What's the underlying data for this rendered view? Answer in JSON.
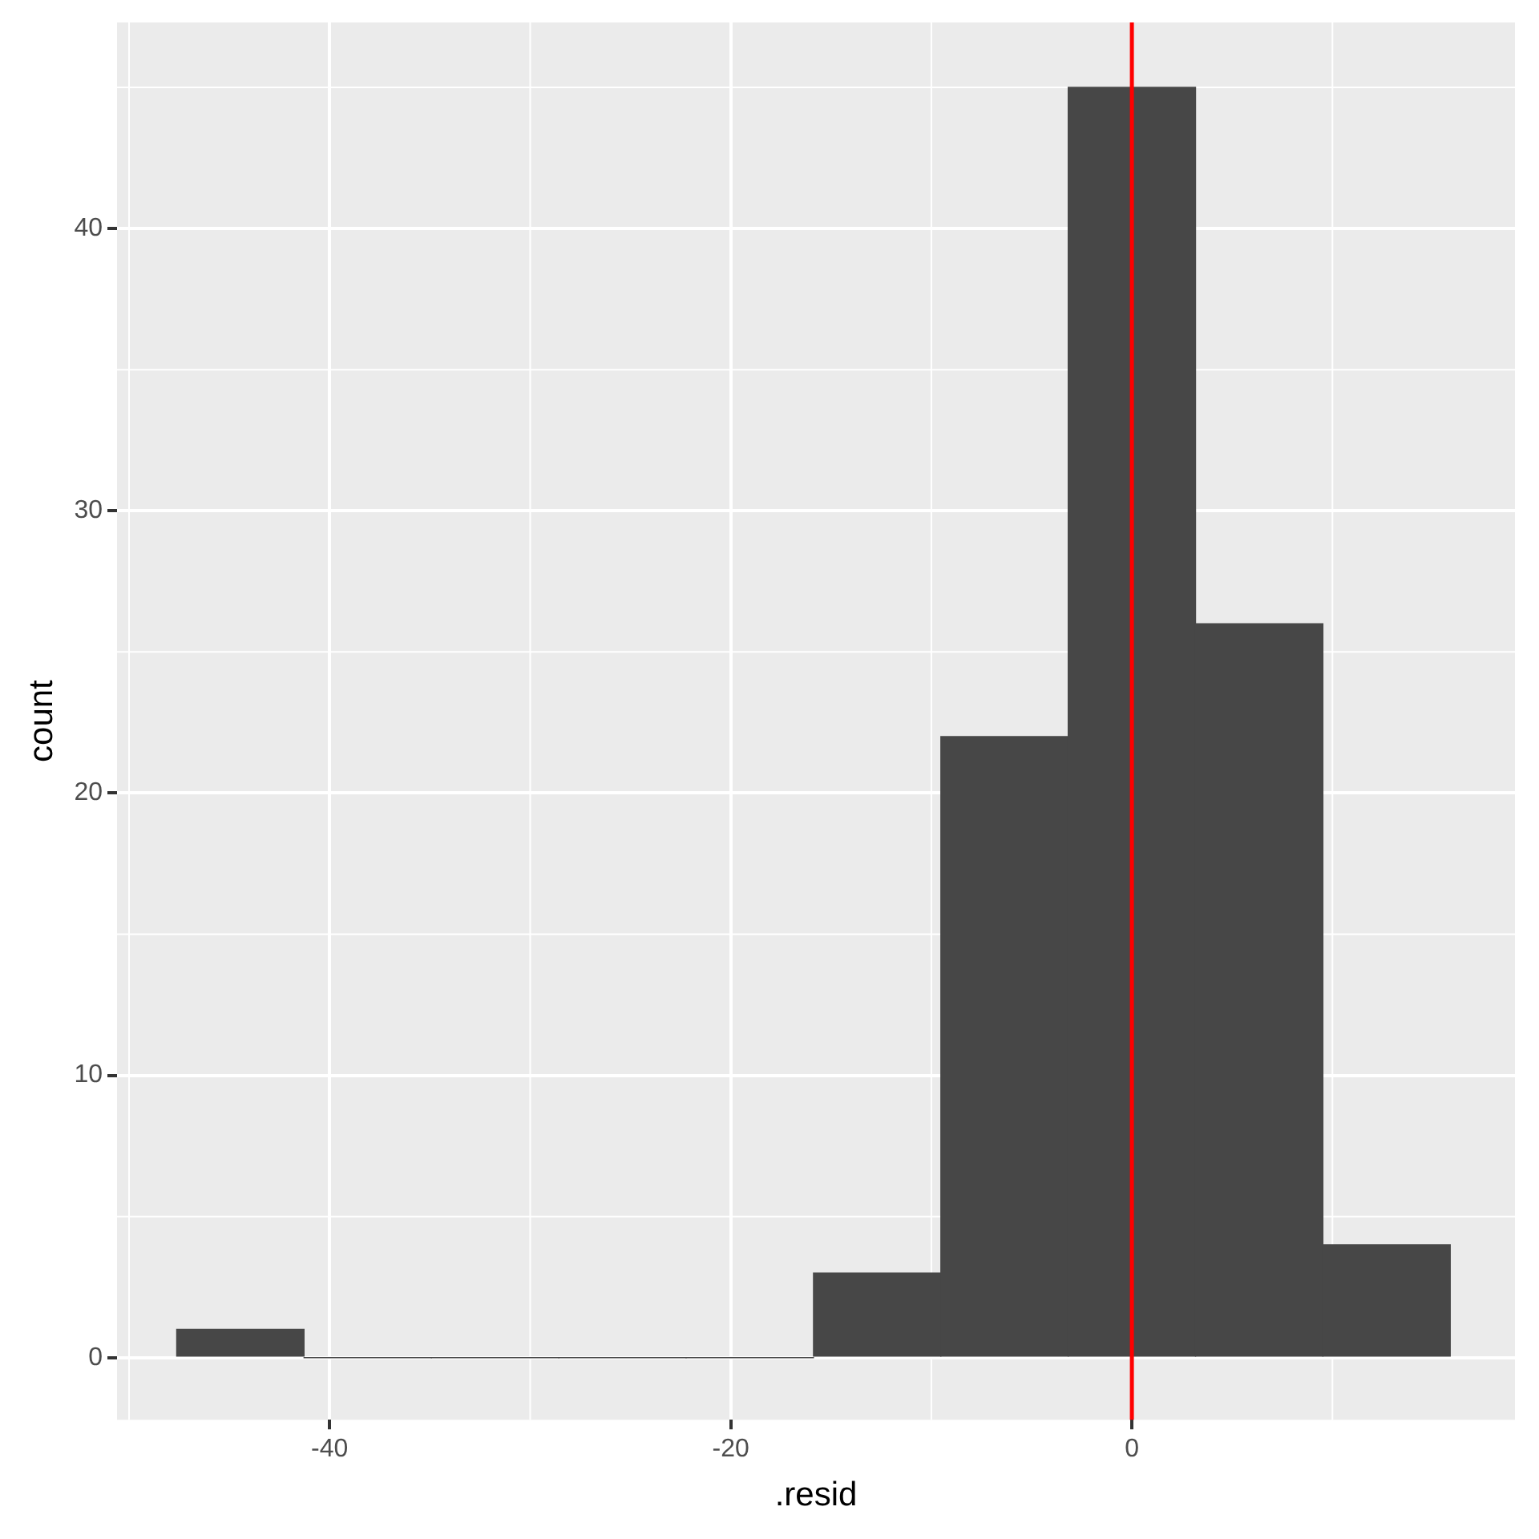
{
  "chart_data": {
    "type": "histogram",
    "xlabel": ".resid",
    "ylabel": "count",
    "bins": [
      -47.6,
      -41.3,
      -34.9,
      -28.6,
      -22.2,
      -15.9,
      -9.5,
      -3.2,
      3.2,
      9.5,
      15.9
    ],
    "values": [
      1,
      0,
      0,
      0,
      0,
      3,
      22,
      45,
      26,
      4
    ],
    "color": "#474747",
    "xlim": [
      -50.6,
      19.1
    ],
    "xticks": [
      -40,
      -20,
      0
    ],
    "ylim": [
      -2.2,
      47.3
    ],
    "yticks": [
      0,
      10,
      20,
      30,
      40
    ],
    "grid": true,
    "legend": false,
    "ref_lines": [
      {
        "axis": "x",
        "value": 0,
        "color": "#ff0000"
      }
    ]
  }
}
